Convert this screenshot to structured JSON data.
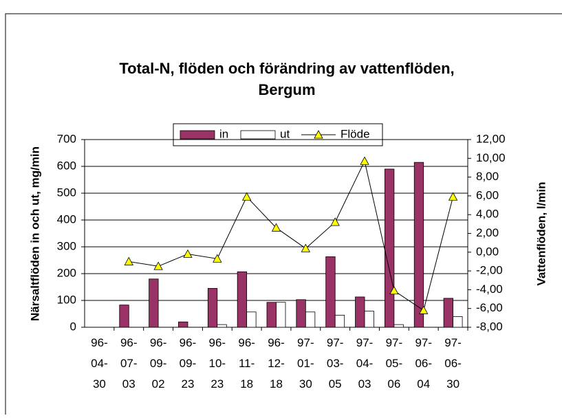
{
  "chart_data": {
    "type": "bar-line",
    "title": [
      "Total-N, flöden och förändring av vattenflöden,",
      "Bergum"
    ],
    "y_label": "Närsaltflöden in och ut, mg/min",
    "y2_label": "Vattenflöden, l/min",
    "categories": [
      "96-04-30",
      "96-07-03",
      "96-09-02",
      "96-09-23",
      "96-10-23",
      "96-11-18",
      "96-12-18",
      "97-01-30",
      "97-03-05",
      "97-04-03",
      "97-05-06",
      "97-06-04",
      "97-06-30"
    ],
    "series": [
      {
        "name": "in",
        "type": "bar",
        "color": "#993366",
        "values": [
          0,
          83,
          180,
          20,
          145,
          207,
          93,
          103,
          263,
          113,
          590,
          615,
          108
        ]
      },
      {
        "name": "ut",
        "type": "bar",
        "color": "#ffffff",
        "values": [
          0,
          0,
          0,
          0,
          10,
          57,
          93,
          57,
          45,
          60,
          10,
          0,
          40
        ]
      },
      {
        "name": "Flöde",
        "type": "line",
        "axis": "y2",
        "color": "#ffff00",
        "values": [
          null,
          -1.0,
          -1.5,
          -0.2,
          -0.7,
          5.9,
          2.6,
          0.4,
          3.2,
          9.7,
          -4.1,
          -6.2,
          5.9
        ]
      }
    ],
    "ylim": [
      0,
      700
    ],
    "yticks": [
      0,
      100,
      200,
      300,
      400,
      500,
      600,
      700
    ],
    "y2lim": [
      -8,
      12
    ],
    "y2ticks": [
      {
        "value": -8,
        "label": "-8,00"
      },
      {
        "value": -6,
        "label": "-6,00"
      },
      {
        "value": -4,
        "label": "-4,00"
      },
      {
        "value": -2,
        "label": "-2,00"
      },
      {
        "value": 0,
        "label": "0,00"
      },
      {
        "value": 2,
        "label": "2,00"
      },
      {
        "value": 4,
        "label": "4,00"
      },
      {
        "value": 6,
        "label": "6,00"
      },
      {
        "value": 8,
        "label": "8,00"
      },
      {
        "value": 10,
        "label": "10,00"
      },
      {
        "value": 12,
        "label": "12,00"
      }
    ],
    "grid": true
  }
}
